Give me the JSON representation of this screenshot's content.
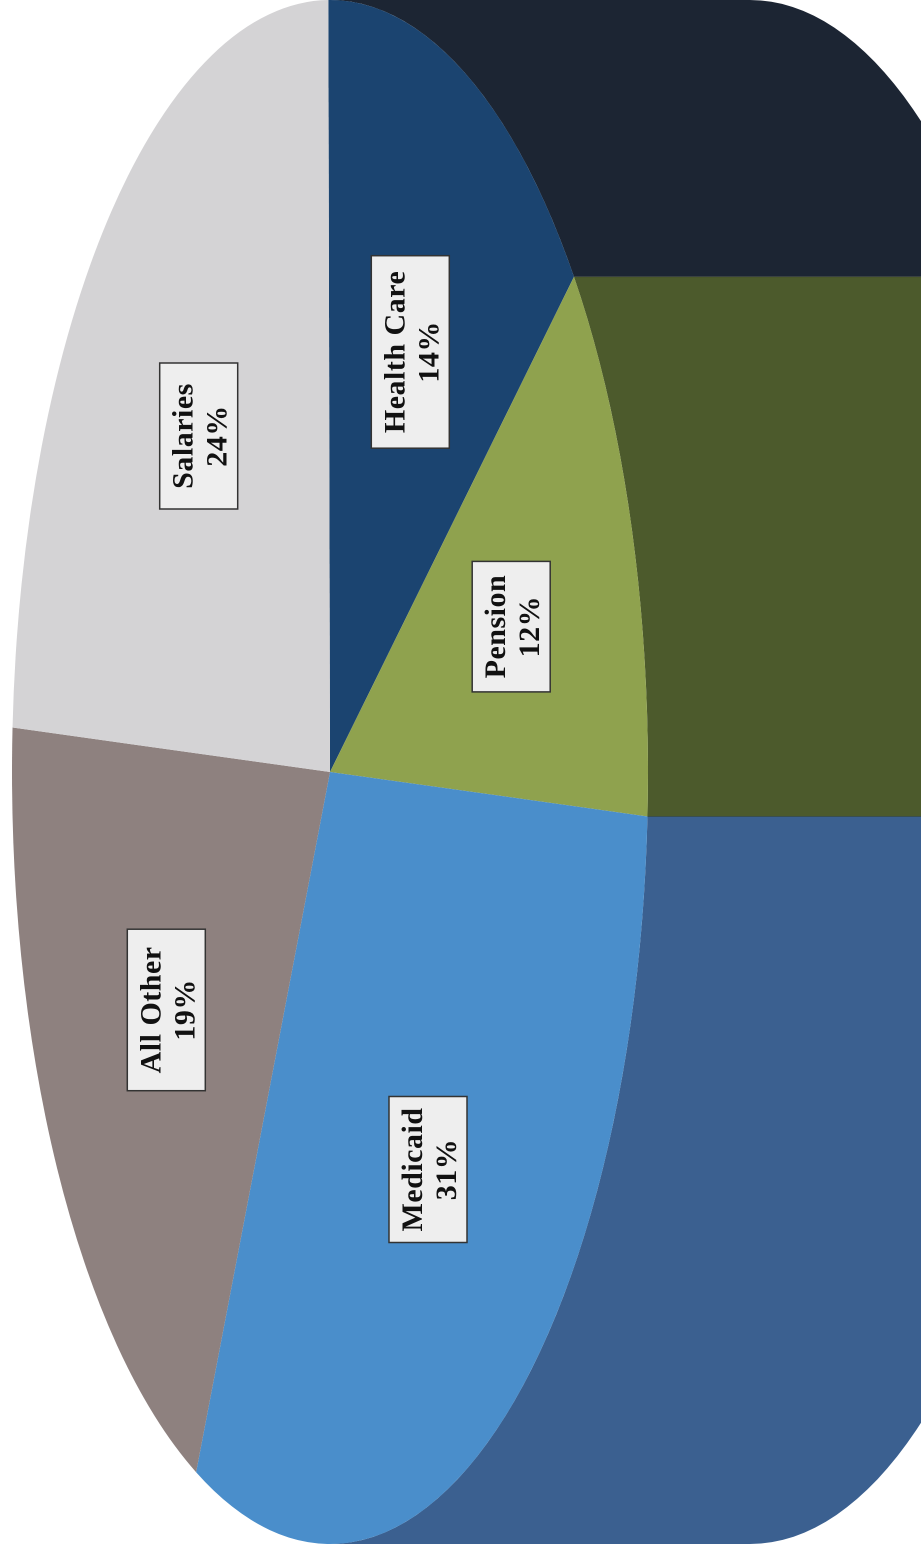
{
  "chart_data": {
    "type": "pie",
    "style": "3d",
    "orientation": "rotated-90-counterclockwise",
    "slices": [
      {
        "label": "Health Care",
        "percent_label": "14%",
        "value": 14,
        "color": "#1b4470",
        "side_color": "#1c2533"
      },
      {
        "label": "Pension",
        "percent_label": "12%",
        "value": 12,
        "color": "#8fa24e",
        "side_color": "#4c5a2c"
      },
      {
        "label": "Medicaid",
        "percent_label": "31%",
        "value": 31,
        "color": "#4a8ecb",
        "side_color": "#3b6090"
      },
      {
        "label": "All Other",
        "percent_label": "19%",
        "value": 19,
        "color": "#8e817f",
        "side_color": "#6f6462"
      },
      {
        "label": "Salaries",
        "percent_label": "24%",
        "value": 24,
        "color": "#d4d3d5",
        "side_color": "#a9a8aa"
      }
    ]
  }
}
